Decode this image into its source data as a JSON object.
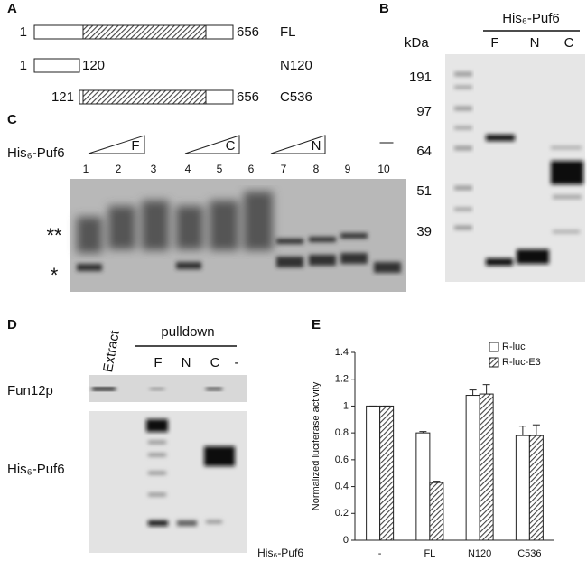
{
  "panel_labels": [
    "A",
    "B",
    "C",
    "D",
    "E"
  ],
  "panel_a": {
    "constructs": [
      {
        "start": "1",
        "end": "656",
        "name": "FL"
      },
      {
        "start": "1",
        "end": "120",
        "name": "N120"
      },
      {
        "start": "121",
        "end": "656",
        "name": "C536"
      }
    ]
  },
  "panel_b": {
    "title": "His₆-Puf6",
    "unit": "kDa",
    "lanes": [
      "F",
      "N",
      "C"
    ],
    "markers": [
      "191",
      "97",
      "64",
      "51",
      "39"
    ]
  },
  "panel_c": {
    "label": "His₆-Puf6",
    "groups": [
      "F",
      "C",
      "N"
    ],
    "lanes": [
      "1",
      "2",
      "3",
      "4",
      "5",
      "6",
      "7",
      "8",
      "9",
      "10"
    ],
    "control": "—",
    "bands": [
      "**",
      "*"
    ]
  },
  "panel_d": {
    "extract": "Extract",
    "pulldown": "pulldown",
    "lanes": [
      "F",
      "N",
      "C",
      "-"
    ],
    "rows": [
      "Fun12p",
      "His₆-Puf6"
    ]
  },
  "chart_data": {
    "type": "bar",
    "y_label": "Normalized luciferase activity",
    "x_label": "His₆-Puf6",
    "categories": [
      "-",
      "FL",
      "N120",
      "C536"
    ],
    "series": [
      {
        "name": "R-luc",
        "color": "#ffffff",
        "values": [
          1,
          0.8,
          1.08,
          0.78
        ],
        "errors": [
          0,
          0.01,
          0.04,
          0.07
        ]
      },
      {
        "name": "R-luc-E3",
        "color": "hatch",
        "values": [
          1,
          0.43,
          1.09,
          0.78
        ],
        "errors": [
          0,
          0.01,
          0.07,
          0.08
        ]
      }
    ],
    "ylim": [
      0,
      1.4
    ],
    "yticks": [
      0,
      0.2,
      0.4,
      0.6,
      0.8,
      1,
      1.2,
      1.4
    ],
    "legend": "upper right"
  }
}
